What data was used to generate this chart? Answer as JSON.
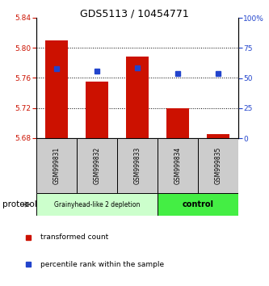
{
  "title": "GDS5113 / 10454771",
  "samples": [
    "GSM999831",
    "GSM999832",
    "GSM999833",
    "GSM999834",
    "GSM999835"
  ],
  "red_bar_tops": [
    5.81,
    5.755,
    5.788,
    5.72,
    5.685
  ],
  "bar_bottom": 5.68,
  "blue_marker_y": [
    5.772,
    5.769,
    5.773,
    5.766,
    5.766
  ],
  "ylim_left": [
    5.68,
    5.84
  ],
  "ylim_right": [
    0,
    100
  ],
  "yticks_left": [
    5.68,
    5.72,
    5.76,
    5.8,
    5.84
  ],
  "yticks_right": [
    0,
    25,
    50,
    75,
    100
  ],
  "ytick_labels_right": [
    "0",
    "25",
    "50",
    "75",
    "100%"
  ],
  "red_color": "#cc1100",
  "blue_color": "#2244cc",
  "bar_width": 0.55,
  "group1_label": "Grainyhead-like 2 depletion",
  "group2_label": "control",
  "group1_indices": [
    0,
    1,
    2
  ],
  "group2_indices": [
    3,
    4
  ],
  "group1_bg": "#ccffcc",
  "group2_bg": "#44ee44",
  "sample_bg": "#cccccc",
  "protocol_label": "protocol",
  "legend_red": "transformed count",
  "legend_blue": "percentile rank within the sample"
}
